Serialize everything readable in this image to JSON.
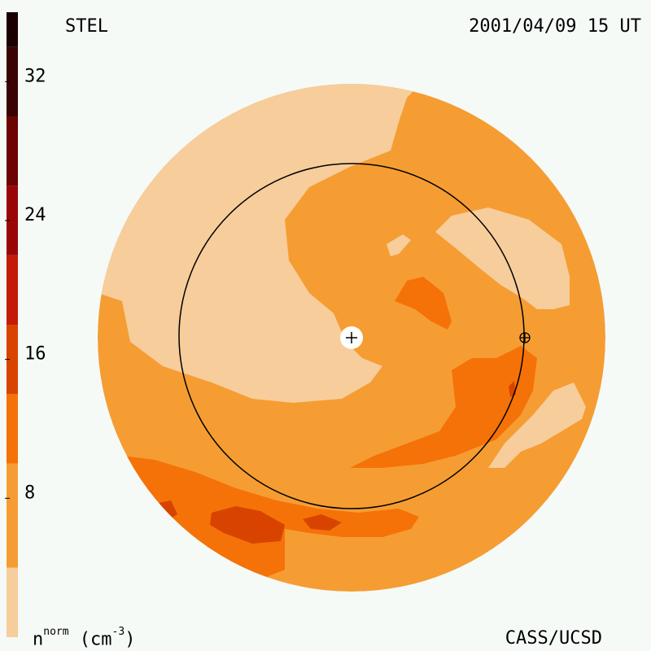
{
  "header": {
    "left_label": "STEL",
    "right_label": "2001/04/09 15 UT"
  },
  "footer": {
    "quantity_base": "n",
    "quantity_sup": "norm",
    "quantity_unit_text": " (cm",
    "quantity_unit_sup": "-3",
    "quantity_unit_close": ")",
    "credit": "CASS/UCSD"
  },
  "colorbar": {
    "range": [
      0,
      36
    ],
    "bands": [
      {
        "from": 0,
        "to": 4,
        "color": "#f7cd9b"
      },
      {
        "from": 4,
        "to": 10,
        "color": "#f59d33"
      },
      {
        "from": 10,
        "to": 14,
        "color": "#f57208"
      },
      {
        "from": 14,
        "to": 18,
        "color": "#d84400"
      },
      {
        "from": 18,
        "to": 22,
        "color": "#c41a0a"
      },
      {
        "from": 22,
        "to": 26,
        "color": "#9a0606"
      },
      {
        "from": 26,
        "to": 30,
        "color": "#6c0404"
      },
      {
        "from": 30,
        "to": 34,
        "color": "#3b0202"
      },
      {
        "from": 34,
        "to": 36,
        "color": "#1a0000"
      }
    ],
    "ticks": [
      {
        "value": 8,
        "label": "8"
      },
      {
        "value": 16,
        "label": "16"
      },
      {
        "value": 24,
        "label": "24"
      },
      {
        "value": 32,
        "label": "32"
      }
    ]
  },
  "map": {
    "sun_marker": "+",
    "earth_marker": "earth-symbol"
  }
}
